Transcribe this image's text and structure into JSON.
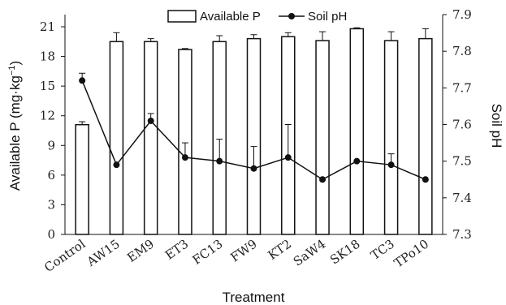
{
  "chart_data": {
    "type": "bar+line",
    "categories": [
      "Control",
      "AW15",
      "EM9",
      "ET3",
      "FC13",
      "FW9",
      "KT2",
      "SaW4",
      "SK18",
      "TC3",
      "TPo10"
    ],
    "xlabel": "Treatment",
    "ylabel_left": "Available P (mg·kg",
    "ylabel_left_sup": "−1",
    "ylabel_left_close": ")",
    "ylabel_right": "Soil pH",
    "left_axis": {
      "min": 0,
      "max": 21,
      "ticks": [
        0,
        3,
        6,
        9,
        12,
        15,
        18,
        21
      ]
    },
    "right_axis": {
      "min": 7.3,
      "max": 7.9,
      "ticks": [
        "7.3",
        "7.4",
        "7.5",
        "7.6",
        "7.7",
        "7.8",
        "7.9"
      ]
    },
    "series": [
      {
        "name": "Available P",
        "kind": "bar",
        "axis": "left",
        "values": [
          11.1,
          19.5,
          19.5,
          18.7,
          19.5,
          19.8,
          20.0,
          19.6,
          20.8,
          19.6,
          19.8
        ],
        "errors": [
          0.3,
          0.9,
          0.3,
          0.1,
          0.6,
          0.4,
          0.4,
          0.9,
          0.1,
          0.9,
          1.0
        ]
      },
      {
        "name": "Soil pH",
        "kind": "line",
        "axis": "right",
        "values": [
          7.72,
          7.49,
          7.61,
          7.51,
          7.5,
          7.48,
          7.51,
          7.45,
          7.5,
          7.49,
          7.45
        ],
        "errors": [
          0.02,
          0.0,
          0.02,
          0.04,
          0.06,
          0.06,
          0.09,
          0.0,
          0.0,
          0.03,
          0.0
        ]
      }
    ],
    "legend_position": "top",
    "grid": false,
    "colors": {
      "bar_fill": "#ffffff",
      "bar_stroke": "#111111",
      "line": "#111111",
      "marker": "#111111"
    }
  }
}
